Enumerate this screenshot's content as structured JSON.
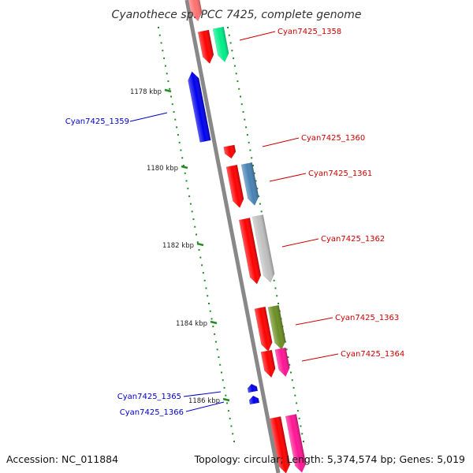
{
  "title": "Cyanothece sp. PCC 7425, complete genome",
  "footer": {
    "accession": "Accession: NC_011884",
    "summary": "Topology: circular; Length: 5,374,574 bp; Genes: 5,019"
  },
  "colors": {
    "backbone": "#888888",
    "tick": "#228b22",
    "forward_label": "#cc0000",
    "reverse_label": "#0000cc"
  },
  "ticks": [
    {
      "label": "1178 kbp"
    },
    {
      "label": "1180 kbp"
    },
    {
      "label": "1182 kbp"
    },
    {
      "label": "1184 kbp"
    },
    {
      "label": "1186 kbp"
    }
  ],
  "genes": [
    {
      "label": "Cyan7425_1358",
      "strand": "+",
      "color": "#00ee88"
    },
    {
      "label": "Cyan7425_1359",
      "strand": "-",
      "color": "#0000ee"
    },
    {
      "label": "Cyan7425_1360",
      "strand": "+",
      "color": "#ff0000"
    },
    {
      "label": "Cyan7425_1361",
      "strand": "+",
      "color": "#4682b4"
    },
    {
      "label": "Cyan7425_1362",
      "strand": "+",
      "color": "#c0c0c0"
    },
    {
      "label": "Cyan7425_1363",
      "strand": "+",
      "color": "#6b8e23"
    },
    {
      "label": "Cyan7425_1364",
      "strand": "+",
      "color": "#ff1493"
    },
    {
      "label": "Cyan7425_1365",
      "strand": "-",
      "color": "#0000ee"
    },
    {
      "label": "Cyan7425_1366",
      "strand": "-",
      "color": "#0000ee"
    }
  ]
}
